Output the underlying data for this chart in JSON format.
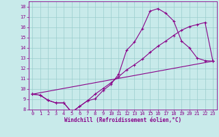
{
  "xlabel": "Windchill (Refroidissement éolien,°C)",
  "xlim": [
    -0.5,
    23.5
  ],
  "ylim": [
    8,
    18.5
  ],
  "xticks": [
    0,
    1,
    2,
    3,
    4,
    5,
    6,
    7,
    8,
    9,
    10,
    11,
    12,
    13,
    14,
    15,
    16,
    17,
    18,
    19,
    20,
    21,
    22,
    23
  ],
  "yticks": [
    8,
    9,
    10,
    11,
    12,
    13,
    14,
    15,
    16,
    17,
    18
  ],
  "bg_color": "#c8eaea",
  "line_color": "#880088",
  "grid_color": "#99cccc",
  "line1_x": [
    0,
    1,
    2,
    3,
    4,
    5,
    6,
    7,
    8,
    9,
    10,
    11,
    12,
    13,
    14,
    15,
    16,
    17,
    18,
    19,
    20,
    21,
    22,
    23
  ],
  "line1_y": [
    9.5,
    9.4,
    8.9,
    8.65,
    8.65,
    7.75,
    8.3,
    8.85,
    9.05,
    9.85,
    10.45,
    11.45,
    13.75,
    14.55,
    15.85,
    17.55,
    17.8,
    17.35,
    16.6,
    14.65,
    14.0,
    13.0,
    12.75,
    12.7
  ],
  "line2_x": [
    0,
    1,
    2,
    3,
    4,
    5,
    6,
    7,
    8,
    9,
    10,
    11,
    12,
    13,
    14,
    15,
    16,
    17,
    18,
    19,
    20,
    21,
    22,
    23
  ],
  "line2_y": [
    9.5,
    9.4,
    8.9,
    8.65,
    8.65,
    7.75,
    8.3,
    8.85,
    9.5,
    10.05,
    10.6,
    11.2,
    11.85,
    12.35,
    12.9,
    13.55,
    14.15,
    14.65,
    15.2,
    15.7,
    16.05,
    16.25,
    16.45,
    12.7
  ],
  "line3_x": [
    0,
    23
  ],
  "line3_y": [
    9.5,
    12.7
  ],
  "marker_size": 2.5,
  "linewidth": 0.8,
  "tick_fontsize": 5.0,
  "xlabel_fontsize": 5.5
}
